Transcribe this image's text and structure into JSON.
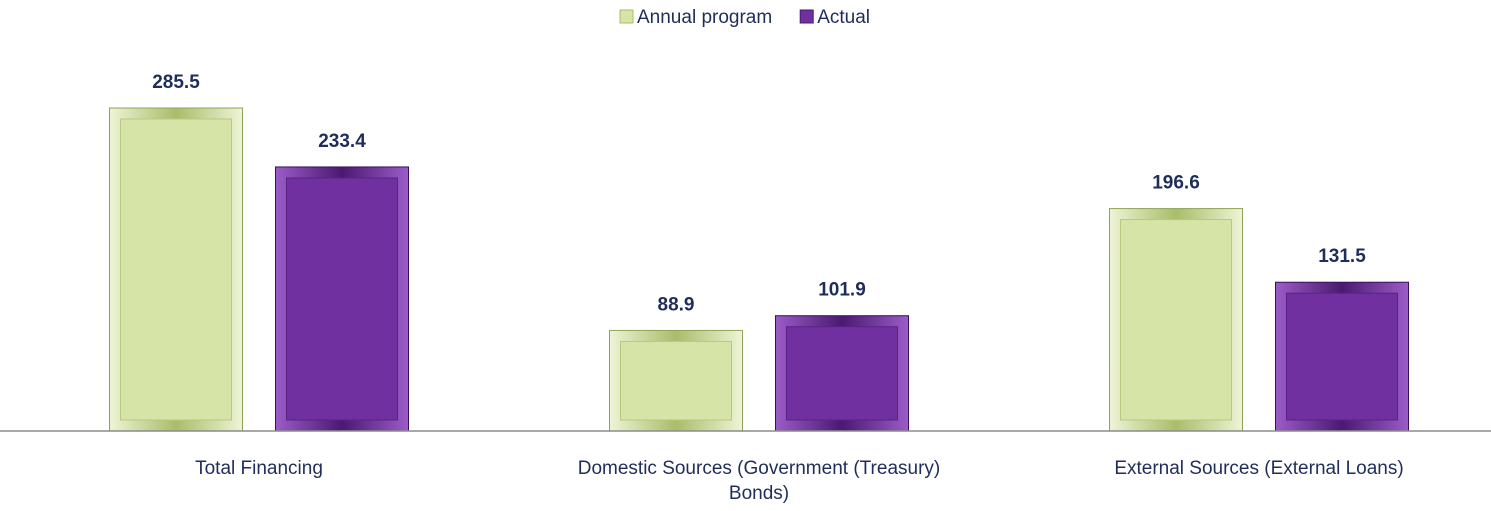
{
  "chart_data": {
    "type": "bar",
    "categories": [
      "Total Financing",
      "Domestic Sources (Government (Treasury) Bonds)",
      "External Sources (External Loans)"
    ],
    "series": [
      {
        "name": "Annual program",
        "color": "#d7e4a8",
        "values": [
          285.5,
          88.9,
          196.6
        ]
      },
      {
        "name": "Actual",
        "color": "#7030a0",
        "values": [
          233.4,
          101.9,
          131.5
        ]
      }
    ],
    "legend": "top"
  }
}
